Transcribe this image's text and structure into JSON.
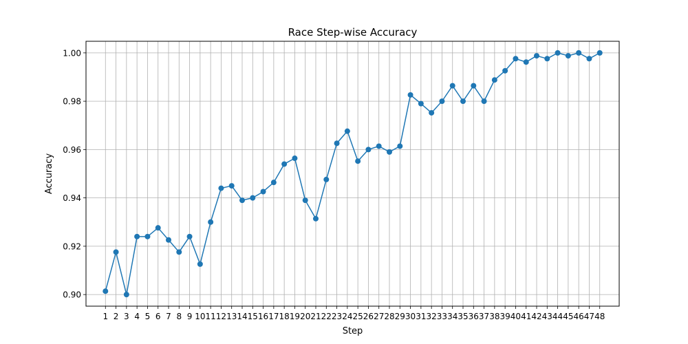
{
  "chart_data": {
    "type": "line",
    "title": "Race Step-wise Accuracy",
    "xlabel": "Step",
    "ylabel": "Accuracy",
    "x": [
      1,
      2,
      3,
      4,
      5,
      6,
      7,
      8,
      9,
      10,
      11,
      12,
      13,
      14,
      15,
      16,
      17,
      18,
      19,
      20,
      21,
      22,
      23,
      24,
      25,
      26,
      27,
      28,
      29,
      30,
      31,
      32,
      33,
      34,
      35,
      36,
      37,
      38,
      39,
      40,
      41,
      42,
      43,
      44,
      45,
      46,
      47,
      48
    ],
    "x_tick_labels": [
      "1",
      "2",
      "3",
      "4",
      "5",
      "6",
      "7",
      "8",
      "9",
      "10",
      "11",
      "12",
      "13",
      "14",
      "15",
      "16",
      "17",
      "18",
      "19",
      "20",
      "21",
      "22",
      "23",
      "24",
      "25",
      "26",
      "27",
      "28",
      "29",
      "30",
      "31",
      "32",
      "33",
      "34",
      "35",
      "36",
      "37",
      "38",
      "39",
      "40",
      "41",
      "42",
      "43",
      "44",
      "45",
      "46",
      "47",
      "48"
    ],
    "series": [
      {
        "values": [
          0.9014,
          0.9176,
          0.9,
          0.924,
          0.924,
          0.9276,
          0.9226,
          0.9176,
          0.924,
          0.9126,
          0.93,
          0.944,
          0.945,
          0.939,
          0.94,
          0.9426,
          0.9464,
          0.954,
          0.9564,
          0.939,
          0.9314,
          0.9476,
          0.9626,
          0.9676,
          0.9552,
          0.96,
          0.9614,
          0.959,
          0.9614,
          0.9826,
          0.979,
          0.9752,
          0.98,
          0.9864,
          0.98,
          0.9864,
          0.98,
          0.9888,
          0.9926,
          0.9976,
          0.9962,
          0.9988,
          0.9976,
          1.0,
          0.9988,
          1.0,
          0.9976,
          1.0
        ]
      }
    ],
    "y_ticks": [
      0.9,
      0.92,
      0.94,
      0.96,
      0.98,
      1.0
    ],
    "y_tick_labels": [
      "0.90",
      "0.92",
      "0.94",
      "0.96",
      "0.98",
      "1.00"
    ],
    "ylim": [
      0.8952,
      1.0048
    ],
    "xlim": [
      -0.85,
      49.85
    ],
    "grid": true,
    "line_color": "#1f77b4",
    "grid_color": "#b0b0b0"
  }
}
